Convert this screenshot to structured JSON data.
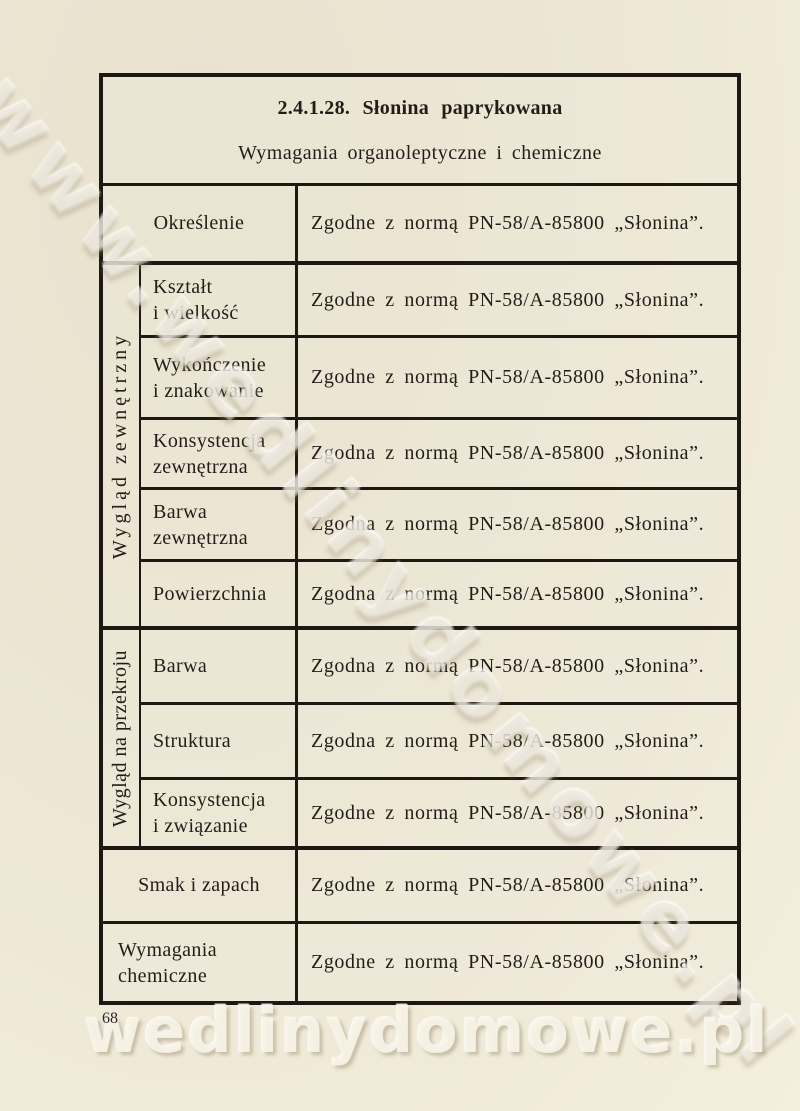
{
  "colors": {
    "paper": "#ece5d3",
    "ink": "#1c1814"
  },
  "page": {
    "number": "68"
  },
  "watermarks": {
    "diagonal": "www.wedlinydomowe.pl",
    "bottom": "wedlinydomowe.pl"
  },
  "table": {
    "title": "2.4.1.28. Słonina paprykowana",
    "subtitle": "Wymagania organoleptyczne i chemiczne",
    "rows": {
      "okreslenie": {
        "label": "Określenie",
        "value": "Zgodne z normą PN-58/A-85800 „Słonina”."
      },
      "smak": {
        "label": "Smak i zapach",
        "value": "Zgodne z normą PN-58/A-85800 „Słonina”."
      },
      "wymagania": {
        "label": "Wymagania\nchemiczne",
        "value": "Zgodne z normą PN-58/A-85800 „Słonina”."
      }
    },
    "section_wyglad_zewnetrzny": {
      "label": "Wygląd zewnętrzny",
      "rows": [
        {
          "label": "Kształt\ni wielkość",
          "value": "Zgodne z normą PN-58/A-85800 „Słonina”."
        },
        {
          "label": "Wykończenie\ni znakowanie",
          "value": "Zgodne z normą PN-58/A-85800 „Słonina”."
        },
        {
          "label": "Konsystencja\nzewnętrzna",
          "value": "Zgodna z normą PN-58/A-85800 „Słonina”."
        },
        {
          "label": "Barwa\nzewnętrzna",
          "value": "Zgodna z normą PN-58/A-85800 „Słonina”."
        },
        {
          "label": "Powierzchnia",
          "value": "Zgodna z normą PN-58/A-85800 „Słonina”."
        }
      ]
    },
    "section_wyglad_na_przekroju": {
      "label": "Wygląd na przekroju",
      "rows": [
        {
          "label": "Barwa",
          "value": "Zgodna z normą PN-58/A-85800 „Słonina”."
        },
        {
          "label": "Struktura",
          "value": "Zgodna z normą PN-58/A-85800 „Słonina”."
        },
        {
          "label": "Konsystencja\ni związanie",
          "value": "Zgodne z normą PN-58/A-85800 „Słonina”."
        }
      ]
    }
  }
}
